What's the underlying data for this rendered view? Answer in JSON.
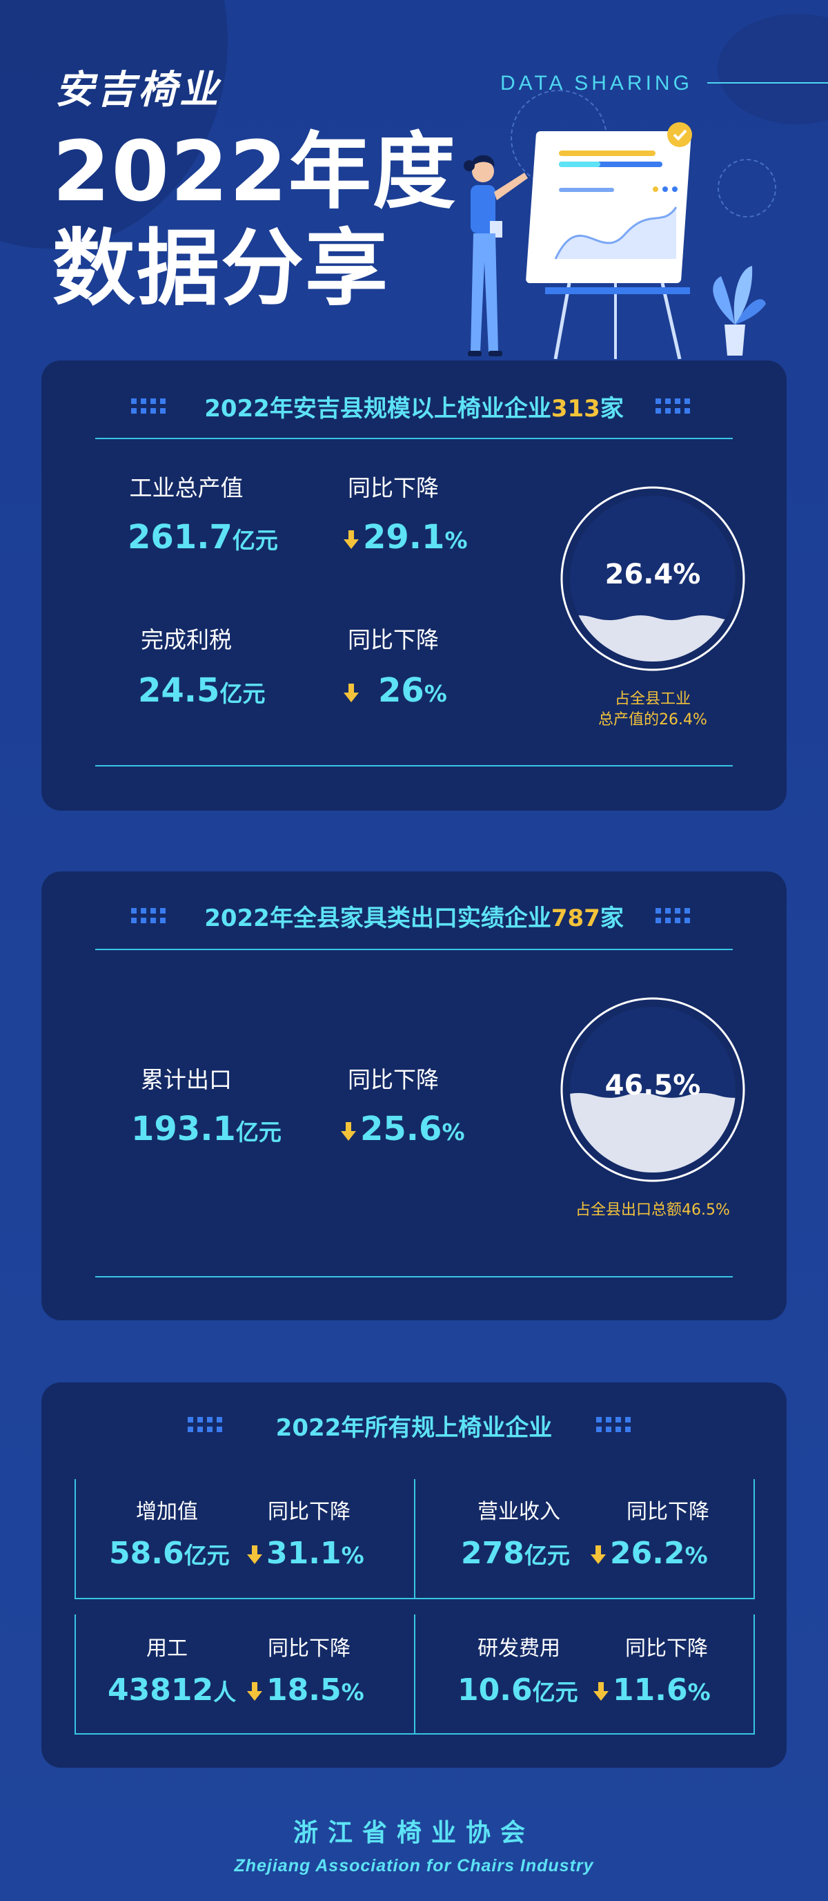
{
  "header": {
    "brand": "安吉椅业",
    "title_line1": "2022年度",
    "title_line2": "数据分享",
    "tagline": "DATA SHARING"
  },
  "section1": {
    "heading_prefix": "2022年安吉县规模以上椅业企业",
    "heading_highlight": "313",
    "heading_suffix": "家",
    "stats": [
      {
        "label": "工业总产值",
        "value": "261.7",
        "unit": "亿元",
        "change_label": "同比下降",
        "change_value": "29.1",
        "change_unit": "%"
      },
      {
        "label": "完成利税",
        "value": "24.5",
        "unit": "亿元",
        "change_label": "同比下降",
        "change_value": "26",
        "change_unit": "%"
      }
    ],
    "gauge": {
      "percent_text": "26.4%",
      "fill_fraction": 0.264,
      "note_line1": "占全县工业",
      "note_line2": "总产值的26.4%"
    }
  },
  "section2": {
    "heading_prefix": "2022年全县家具类出口实绩企业",
    "heading_highlight": "787",
    "heading_suffix": "家",
    "stat": {
      "label": "累计出口",
      "value": "193.1",
      "unit": "亿元",
      "change_label": "同比下降",
      "change_value": "25.6",
      "change_unit": "%"
    },
    "gauge": {
      "percent_text": "46.5%",
      "fill_fraction": 0.465,
      "note": "占全县出口总额46.5%"
    }
  },
  "section3": {
    "heading": "2022年所有规上椅业企业",
    "cells": [
      {
        "label": "增加值",
        "value": "58.6",
        "unit": "亿元",
        "change_label": "同比下降",
        "change_value": "31.1",
        "change_unit": "%"
      },
      {
        "label": "营业收入",
        "value": "278",
        "unit": "亿元",
        "change_label": "同比下降",
        "change_value": "26.2",
        "change_unit": "%"
      },
      {
        "label": "用工",
        "value": "43812",
        "unit": "人",
        "change_label": "同比下降",
        "change_value": "18.5",
        "change_unit": "%"
      },
      {
        "label": "研发费用",
        "value": "10.6",
        "unit": "亿元",
        "change_label": "同比下降",
        "change_value": "11.6",
        "change_unit": "%"
      }
    ]
  },
  "footer": {
    "org_cn": "浙江省椅业协会",
    "org_en": "Zhejiang Association for Chairs Industry"
  },
  "colors": {
    "background": "#1d3f96",
    "card": "#142a66",
    "accent_cyan": "#5de3f5",
    "accent_yellow": "#f4c33a"
  }
}
